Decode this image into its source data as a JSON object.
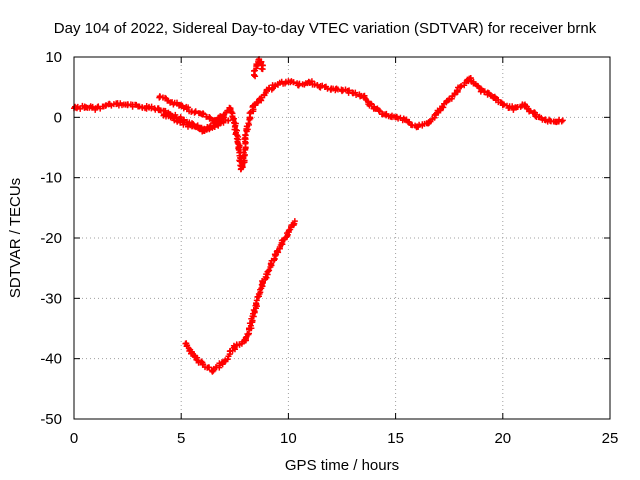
{
  "chart_data": {
    "type": "scatter",
    "title": "Day 104 of 2022, Sidereal Day-to-day VTEC variation (SDTVAR) for receiver brnk",
    "xlabel": "GPS time / hours",
    "ylabel": "SDTVAR / TECUs",
    "xlim": [
      0,
      25
    ],
    "ylim": [
      -50,
      10
    ],
    "xticks": [
      0,
      5,
      10,
      15,
      20,
      25
    ],
    "yticks": [
      10,
      0,
      -10,
      -20,
      -30,
      -40,
      -50
    ],
    "grid": true,
    "marker": "plus",
    "colors": {
      "series": "#ff0000",
      "grid": "#a0a0a0",
      "axis": "#000000"
    },
    "series": [
      {
        "name": "main-track",
        "points": [
          [
            0,
            1.5
          ],
          [
            0.5,
            1.8
          ],
          [
            1,
            1.5
          ],
          [
            1.5,
            2.0
          ],
          [
            2,
            2.2
          ],
          [
            2.5,
            2.0
          ],
          [
            3,
            1.8
          ],
          [
            3.5,
            1.6
          ],
          [
            4,
            1.2
          ],
          [
            4.5,
            0.5
          ],
          [
            5,
            -0.3
          ],
          [
            5.5,
            -1.2
          ],
          [
            6,
            -2.0
          ],
          [
            6.3,
            -1.8
          ],
          [
            6.6,
            -0.5
          ],
          [
            7,
            0.5
          ],
          [
            7.3,
            1.5
          ],
          [
            7.5,
            -1.0
          ],
          [
            7.7,
            -5.0
          ],
          [
            7.8,
            -8.5
          ],
          [
            7.9,
            -7.5
          ],
          [
            8.0,
            -3.0
          ],
          [
            8.2,
            0.0
          ],
          [
            8.4,
            2.0
          ],
          [
            8.7,
            3.0
          ],
          [
            9,
            4.5
          ],
          [
            9.5,
            5.5
          ],
          [
            10,
            6.0
          ],
          [
            10.5,
            5.5
          ],
          [
            11,
            5.8
          ],
          [
            11.5,
            5.2
          ],
          [
            12,
            4.8
          ],
          [
            12.5,
            4.5
          ],
          [
            13,
            4.0
          ],
          [
            13.5,
            3.5
          ],
          [
            14,
            1.5
          ],
          [
            14.5,
            0.5
          ],
          [
            15,
            0.0
          ],
          [
            15.5,
            -0.5
          ],
          [
            16,
            -1.5
          ],
          [
            16.5,
            -1.0
          ],
          [
            17,
            1.0
          ],
          [
            17.5,
            3.0
          ],
          [
            18,
            5.0
          ],
          [
            18.5,
            6.5
          ],
          [
            19,
            4.5
          ],
          [
            19.5,
            3.5
          ],
          [
            20,
            2.0
          ],
          [
            20.5,
            1.5
          ],
          [
            21,
            2.0
          ],
          [
            21.5,
            0.5
          ],
          [
            22,
            -0.5
          ],
          [
            22.5,
            -0.8
          ],
          [
            22.8,
            -0.5
          ]
        ]
      },
      {
        "name": "upper-branch",
        "points": [
          [
            4.0,
            3.5
          ],
          [
            4.5,
            2.5
          ],
          [
            5.0,
            2.0
          ],
          [
            5.5,
            1.0
          ],
          [
            6.0,
            0.5
          ],
          [
            6.5,
            -0.5
          ],
          [
            7.0,
            0.0
          ]
        ]
      },
      {
        "name": "lower-branch",
        "points": [
          [
            4.2,
            0.5
          ],
          [
            4.8,
            -0.5
          ],
          [
            5.5,
            -1.5
          ],
          [
            6.0,
            -2.2
          ],
          [
            6.5,
            -1.5
          ],
          [
            6.8,
            -1.0
          ],
          [
            7.2,
            -0.5
          ]
        ]
      },
      {
        "name": "spike",
        "points": [
          [
            8.4,
            7.0
          ],
          [
            8.5,
            8.5
          ],
          [
            8.6,
            9.5
          ],
          [
            8.7,
            9.0
          ],
          [
            8.8,
            8.0
          ]
        ]
      },
      {
        "name": "dip-arc",
        "points": [
          [
            5.2,
            -37.5
          ],
          [
            5.5,
            -39.0
          ],
          [
            6.0,
            -41.0
          ],
          [
            6.5,
            -42.0
          ],
          [
            7.0,
            -40.5
          ],
          [
            7.5,
            -38.0
          ],
          [
            8.0,
            -37.0
          ],
          [
            8.2,
            -35.0
          ],
          [
            8.5,
            -31.0
          ],
          [
            8.8,
            -27.5
          ],
          [
            9.2,
            -24.5
          ],
          [
            9.6,
            -21.5
          ],
          [
            10.0,
            -19.0
          ],
          [
            10.3,
            -17.2
          ]
        ]
      }
    ]
  }
}
